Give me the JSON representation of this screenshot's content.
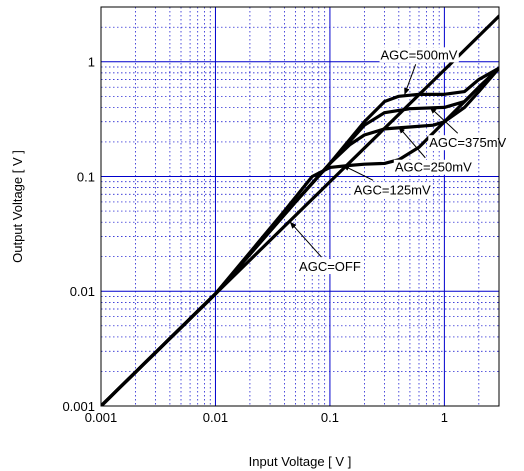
{
  "chart_data": {
    "type": "line",
    "xlabel": "Input Voltage [ V ]",
    "ylabel": "Output Voltage [ V ]",
    "xscale": "log",
    "yscale": "log",
    "xlim": [
      0.001,
      3
    ],
    "ylim": [
      0.001,
      3
    ],
    "grid": true,
    "x_ticks": [
      {
        "value": 0.001,
        "label": "0.001"
      },
      {
        "value": 0.01,
        "label": "0.01"
      },
      {
        "value": 0.1,
        "label": "0.1"
      },
      {
        "value": 1,
        "label": "1"
      }
    ],
    "y_ticks": [
      {
        "value": 0.001,
        "label": "0.001"
      },
      {
        "value": 0.01,
        "label": "0.01"
      },
      {
        "value": 0.1,
        "label": "0.1"
      },
      {
        "value": 1,
        "label": "1"
      }
    ],
    "series": [
      {
        "name": "AGC=OFF",
        "x": [
          0.001,
          0.01,
          0.1,
          1,
          3
        ],
        "y": [
          0.001,
          0.0095,
          0.09,
          0.85,
          2.5
        ]
      },
      {
        "name": "AGC=500mV",
        "x": [
          0.001,
          0.01,
          0.05,
          0.1,
          0.2,
          0.3,
          0.4,
          0.6,
          1,
          1.5,
          2,
          3
        ],
        "y": [
          0.001,
          0.0095,
          0.06,
          0.13,
          0.3,
          0.45,
          0.5,
          0.52,
          0.52,
          0.55,
          0.7,
          0.88
        ]
      },
      {
        "name": "AGC=375mV",
        "x": [
          0.001,
          0.01,
          0.05,
          0.1,
          0.2,
          0.3,
          0.5,
          1,
          1.5,
          2,
          3
        ],
        "y": [
          0.001,
          0.0095,
          0.06,
          0.13,
          0.28,
          0.36,
          0.39,
          0.4,
          0.45,
          0.6,
          0.88
        ]
      },
      {
        "name": "AGC=250mV",
        "x": [
          0.001,
          0.01,
          0.05,
          0.1,
          0.15,
          0.2,
          0.3,
          0.5,
          0.8,
          1,
          1.5,
          2,
          3
        ],
        "y": [
          0.001,
          0.0095,
          0.06,
          0.13,
          0.19,
          0.23,
          0.26,
          0.27,
          0.28,
          0.3,
          0.4,
          0.55,
          0.88
        ]
      },
      {
        "name": "AGC=125mV",
        "x": [
          0.001,
          0.01,
          0.04,
          0.07,
          0.1,
          0.15,
          0.2,
          0.3,
          0.4,
          0.6,
          1,
          2,
          3
        ],
        "y": [
          0.001,
          0.0095,
          0.05,
          0.1,
          0.12,
          0.125,
          0.128,
          0.13,
          0.14,
          0.18,
          0.3,
          0.6,
          0.88
        ]
      }
    ],
    "annotations": [
      {
        "text": "AGC=500mV",
        "label_x": 0.6,
        "label_y": 1.05,
        "arrow_to": [
          0.45,
          0.52
        ]
      },
      {
        "text": "AGC=375mV",
        "label_x": 1.6,
        "label_y": 0.18,
        "arrow_to": [
          0.75,
          0.4
        ]
      },
      {
        "text": "AGC=250mV",
        "label_x": 0.8,
        "label_y": 0.11,
        "arrow_to": [
          0.4,
          0.27
        ]
      },
      {
        "text": "AGC=125mV",
        "label_x": 0.35,
        "label_y": 0.07,
        "arrow_to": [
          0.13,
          0.125
        ]
      },
      {
        "text": "AGC=OFF",
        "label_x": 0.1,
        "label_y": 0.015,
        "arrow_to": [
          0.045,
          0.04
        ]
      }
    ],
    "colors": {
      "grid": "#0000cc",
      "curve": "#000000",
      "frame": "#000000"
    }
  }
}
